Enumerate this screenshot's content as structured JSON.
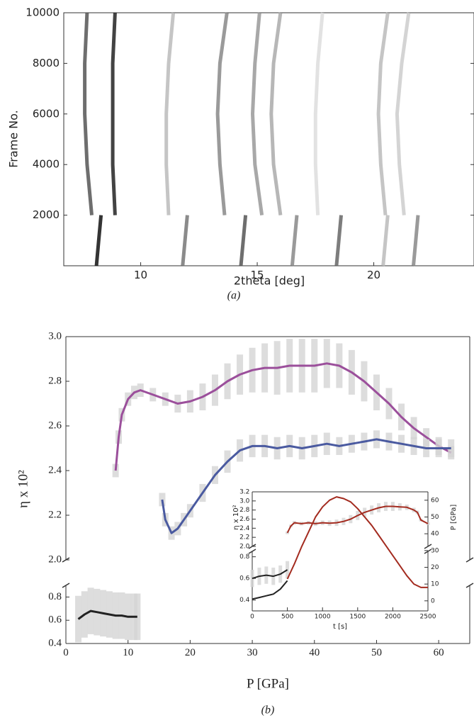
{
  "chart_data": [
    {
      "type": "streaks",
      "ylabel": "Frame No.",
      "xlabel": "2theta [deg]",
      "caption": "(a)",
      "xlim": [
        6.7,
        24.3
      ],
      "ylim": [
        0,
        10000
      ],
      "xticks": [
        10,
        15,
        20
      ],
      "yticks": [
        2000,
        4000,
        6000,
        8000,
        10000
      ],
      "series": [
        {
          "color": "#555555",
          "x": [
            7.9,
            7.7,
            7.6,
            7.6,
            7.7
          ],
          "values": [
            2000,
            4000,
            6000,
            8000,
            10000
          ]
        },
        {
          "color": "#222222",
          "x": [
            8.9,
            8.8,
            8.8,
            8.8,
            8.9
          ],
          "values": [
            2000,
            4000,
            6000,
            8000,
            10000
          ]
        },
        {
          "color": "#bbbbbb",
          "x": [
            11.2,
            11.1,
            11.1,
            11.2,
            11.4
          ],
          "values": [
            2000,
            4000,
            6000,
            8000,
            10000
          ]
        },
        {
          "color": "#888888",
          "x": [
            13.6,
            13.4,
            13.3,
            13.4,
            13.7
          ],
          "values": [
            2000,
            4000,
            6000,
            8000,
            10000
          ]
        },
        {
          "color": "#999999",
          "x": [
            15.2,
            14.9,
            14.8,
            14.9,
            15.1
          ],
          "values": [
            2000,
            4000,
            6000,
            8000,
            10000
          ]
        },
        {
          "color": "#aaaaaa",
          "x": [
            16.0,
            15.7,
            15.6,
            15.7,
            16.0
          ],
          "values": [
            2000,
            4000,
            6000,
            8000,
            10000
          ]
        },
        {
          "color": "#dddddd",
          "x": [
            17.6,
            17.5,
            17.5,
            17.6,
            17.8
          ],
          "values": [
            2000,
            4000,
            6000,
            8000,
            10000
          ]
        },
        {
          "color": "#bbbbbb",
          "x": [
            20.5,
            20.3,
            20.2,
            20.3,
            20.6
          ],
          "values": [
            2000,
            4000,
            6000,
            8000,
            10000
          ]
        },
        {
          "color": "#cccccc",
          "x": [
            21.3,
            21.1,
            21.0,
            21.2,
            21.5
          ],
          "values": [
            2000,
            4000,
            6000,
            8000,
            10000
          ]
        },
        {
          "color": "#111111",
          "x": [
            8.1,
            8.2,
            8.3
          ],
          "values": [
            0,
            1000,
            2000
          ]
        },
        {
          "color": "#777777",
          "x": [
            11.8,
            11.9,
            12.0
          ],
          "values": [
            0,
            1000,
            2000
          ]
        },
        {
          "color": "#555555",
          "x": [
            14.3,
            14.4,
            14.5
          ],
          "values": [
            0,
            1000,
            2000
          ]
        },
        {
          "color": "#888888",
          "x": [
            16.5,
            16.6,
            16.7
          ],
          "values": [
            0,
            1000,
            2000
          ]
        },
        {
          "color": "#666666",
          "x": [
            18.4,
            18.5,
            18.6
          ],
          "values": [
            0,
            1000,
            2000
          ]
        },
        {
          "color": "#bbbbbb",
          "x": [
            20.4,
            20.5,
            20.6
          ],
          "values": [
            0,
            1000,
            2000
          ]
        },
        {
          "color": "#888888",
          "x": [
            21.7,
            21.8,
            21.9
          ],
          "values": [
            0,
            1000,
            2000
          ]
        }
      ]
    },
    {
      "type": "line",
      "ylabel": "η x 10²",
      "xlabel": "P [GPa]",
      "caption": "(b)",
      "xlim": [
        0,
        65
      ],
      "ylim": [
        [
          0.4,
          0.9
        ],
        [
          2.0,
          3.0
        ]
      ],
      "xticks": [
        0,
        10,
        20,
        30,
        40,
        50,
        60
      ],
      "yticks": [
        0.4,
        0.6,
        0.8,
        {
          "value": 2,
          "label": "2.0"
        },
        2.2,
        2.4,
        2.6,
        2.8,
        {
          "value": 3,
          "label": "3.0"
        }
      ],
      "series": [
        {
          "color": "#9b4f9b",
          "x": [
            8,
            8.5,
            9,
            10,
            11,
            12,
            14,
            16,
            18,
            20,
            22,
            24,
            26,
            28,
            30,
            32,
            34,
            36,
            38,
            40,
            42,
            44,
            46,
            48,
            50,
            52,
            54,
            56,
            58,
            60,
            62
          ],
          "values": [
            2.4,
            2.55,
            2.65,
            2.72,
            2.75,
            2.76,
            2.74,
            2.72,
            2.7,
            2.71,
            2.73,
            2.76,
            2.8,
            2.83,
            2.85,
            2.86,
            2.86,
            2.87,
            2.87,
            2.87,
            2.88,
            2.87,
            2.84,
            2.8,
            2.75,
            2.7,
            2.64,
            2.59,
            2.55,
            2.51,
            2.48
          ],
          "errors": [
            0.03,
            0.03,
            0.03,
            0.03,
            0.03,
            0.03,
            0.03,
            0.03,
            0.04,
            0.05,
            0.06,
            0.07,
            0.08,
            0.09,
            0.1,
            0.11,
            0.12,
            0.12,
            0.12,
            0.12,
            0.11,
            0.1,
            0.1,
            0.09,
            0.08,
            0.07,
            0.06,
            0.05,
            0.04,
            0.04,
            0.03
          ]
        },
        {
          "color": "#4a5aa0",
          "x": [
            15.5,
            16,
            17,
            18,
            19,
            20,
            22,
            24,
            26,
            28,
            30,
            32,
            34,
            36,
            38,
            40,
            42,
            44,
            46,
            48,
            50,
            52,
            54,
            56,
            58,
            60,
            62
          ],
          "values": [
            2.27,
            2.18,
            2.12,
            2.14,
            2.18,
            2.22,
            2.3,
            2.38,
            2.44,
            2.49,
            2.51,
            2.51,
            2.5,
            2.51,
            2.5,
            2.51,
            2.52,
            2.51,
            2.52,
            2.53,
            2.54,
            2.53,
            2.52,
            2.51,
            2.5,
            2.5,
            2.5
          ],
          "errors": [
            0.03,
            0.03,
            0.03,
            0.03,
            0.03,
            0.03,
            0.04,
            0.04,
            0.05,
            0.05,
            0.05,
            0.05,
            0.05,
            0.05,
            0.05,
            0.05,
            0.05,
            0.04,
            0.04,
            0.04,
            0.04,
            0.04,
            0.04,
            0.04,
            0.04,
            0.04,
            0.04
          ]
        },
        {
          "color": "#222222",
          "x": [
            2,
            3,
            4,
            5,
            6,
            7,
            8,
            9,
            10,
            11,
            11.5
          ],
          "values": [
            0.61,
            0.65,
            0.68,
            0.67,
            0.66,
            0.65,
            0.64,
            0.64,
            0.63,
            0.63,
            0.63
          ],
          "errors": [
            0.2,
            0.2,
            0.2,
            0.2,
            0.2,
            0.2,
            0.2,
            0.2,
            0.2,
            0.2,
            0.2
          ]
        }
      ]
    },
    {
      "type": "line",
      "ylabel": "η x 10²",
      "y2label": "P [GPa]",
      "xlabel": "t [s]",
      "xlim": [
        0,
        2500
      ],
      "ylim": [
        [
          0.3,
          0.85
        ],
        [
          2.0,
          3.2
        ]
      ],
      "y2lim": [
        -6,
        65
      ],
      "xticks": [
        0,
        500,
        1000,
        1500,
        2000,
        2500
      ],
      "yticks": [
        0.4,
        0.6,
        0.8,
        {
          "value": 2,
          "label": "2.0"
        },
        2.2,
        2.4,
        2.6,
        2.8,
        {
          "value": 3,
          "label": "3.0"
        },
        3.2
      ],
      "y2ticks": [
        0,
        10,
        20,
        30,
        40,
        50,
        60
      ],
      "series": [
        {
          "color": "#222222",
          "x": [
            0,
            100,
            200,
            300,
            400,
            500
          ],
          "values": [
            0.6,
            0.62,
            0.63,
            0.62,
            0.64,
            0.68
          ],
          "errors": [
            0.08,
            0.08,
            0.08,
            0.08,
            0.08,
            0.08
          ]
        },
        {
          "color": "#a32b1f",
          "x": [
            500,
            550,
            600,
            700,
            800,
            900,
            1000,
            1100,
            1200,
            1300,
            1400,
            1500,
            1600,
            1700,
            1800,
            1900,
            2000,
            2100,
            2200,
            2300,
            2350,
            2400,
            2500
          ],
          "values": [
            2.3,
            2.45,
            2.52,
            2.5,
            2.52,
            2.5,
            2.52,
            2.51,
            2.52,
            2.55,
            2.6,
            2.68,
            2.75,
            2.8,
            2.85,
            2.88,
            2.88,
            2.87,
            2.86,
            2.8,
            2.75,
            2.58,
            2.5
          ],
          "errors": [
            0.03,
            0.03,
            0.04,
            0.04,
            0.04,
            0.05,
            0.05,
            0.06,
            0.07,
            0.08,
            0.09,
            0.1,
            0.1,
            0.1,
            0.1,
            0.1,
            0.1,
            0.08,
            0.06,
            0.05,
            0.04,
            0.03,
            0.03
          ]
        },
        {
          "color": "#a32b1f",
          "axis": "y2",
          "x": [
            500,
            600,
            700,
            800,
            900,
            1000,
            1100,
            1200,
            1300,
            1400,
            1500,
            1600,
            1700,
            1800,
            1900,
            2000,
            2100,
            2200,
            2300,
            2400,
            2500
          ],
          "values": [
            13,
            22,
            32,
            41,
            50,
            56,
            60,
            62,
            61,
            59,
            55,
            50,
            45,
            39,
            33,
            27,
            21,
            15,
            10,
            8,
            8
          ]
        },
        {
          "color": "#222222",
          "axis": "y2",
          "x": [
            0,
            100,
            200,
            300,
            400,
            500
          ],
          "values": [
            1,
            2,
            3,
            4,
            7,
            12
          ]
        }
      ]
    }
  ]
}
